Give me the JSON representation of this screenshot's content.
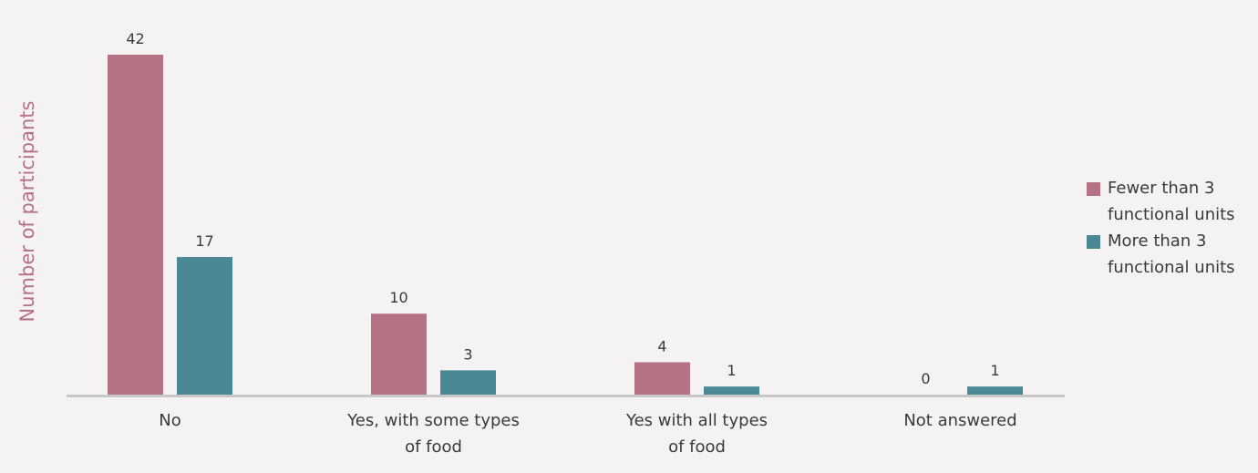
{
  "chart_data": {
    "type": "bar",
    "categories": [
      [
        "No"
      ],
      [
        "Yes, with some types",
        "of food"
      ],
      [
        "Yes with all types",
        "of food"
      ],
      [
        "Not answered"
      ]
    ],
    "series": [
      {
        "name": "Fewer than 3 functional units",
        "values": [
          42,
          10,
          4,
          0
        ],
        "color": "#b57282"
      },
      {
        "name": "More than 3 functional units",
        "values": [
          17,
          3,
          1,
          1
        ],
        "color": "#4a8896"
      }
    ],
    "ylabel": "Number of participants",
    "ylim": [
      0,
      42
    ],
    "grid": false,
    "legend_position": "right"
  }
}
